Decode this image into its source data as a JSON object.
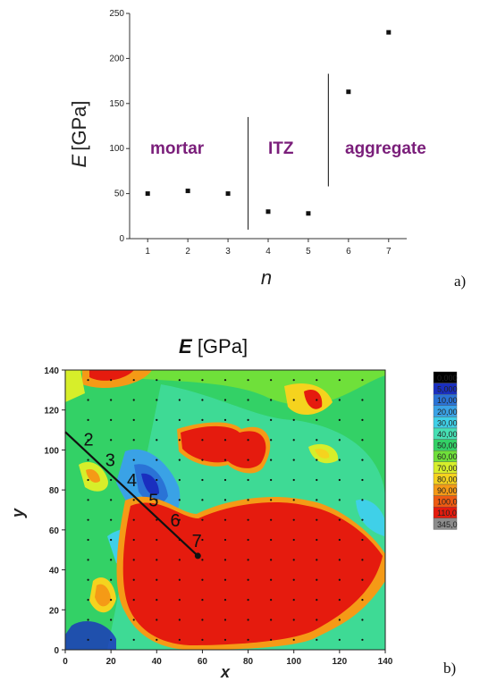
{
  "panel_a_label": "a)",
  "panel_b_label": "b)",
  "chart_data": [
    {
      "type": "scatter",
      "ylabel": "E [GPa]",
      "ylabel_symbol": "E",
      "ylabel_unit": "[GPa]",
      "xlabel": "n",
      "ylim": [
        0,
        250
      ],
      "y_ticks": [
        0,
        50,
        100,
        150,
        200,
        250
      ],
      "x_ticks": [
        1,
        2,
        3,
        4,
        5,
        6,
        7
      ],
      "points": [
        {
          "x": 1,
          "y": 50
        },
        {
          "x": 2,
          "y": 53
        },
        {
          "x": 3,
          "y": 50
        },
        {
          "x": 4,
          "y": 30
        },
        {
          "x": 5,
          "y": 28
        },
        {
          "x": 6,
          "y": 163
        },
        {
          "x": 7,
          "y": 229
        }
      ],
      "annotations": [
        "mortar",
        "ITZ",
        "aggregate"
      ],
      "dividers": [
        3.5,
        5.5
      ]
    },
    {
      "type": "heatmap",
      "title": "E [GPa]",
      "title_symbol": "E",
      "title_unit": "[GPa]",
      "xlabel": "x",
      "ylabel": "y",
      "xlim": [
        0,
        140
      ],
      "ylim": [
        0,
        140
      ],
      "x_ticks": [
        0,
        20,
        40,
        60,
        80,
        100,
        120,
        140
      ],
      "y_ticks": [
        0,
        20,
        40,
        60,
        80,
        100,
        120,
        140
      ],
      "legend_levels": [
        "0,000",
        "5,000",
        "10,00",
        "20,00",
        "30,00",
        "40,00",
        "50,00",
        "60,00",
        "70,00",
        "80,00",
        "90,00",
        "100,0",
        "110,0",
        "345,0"
      ],
      "legend_colors": [
        "#000000",
        "#1a2fbf",
        "#2a73d6",
        "#3aa2e6",
        "#3fd0e8",
        "#46e0b4",
        "#33d166",
        "#6fe03a",
        "#d7ee2a",
        "#f5d31e",
        "#f59a16",
        "#ee5b12",
        "#e51b0e",
        "#8c8c8c"
      ],
      "path_labels": [
        "2",
        "3",
        "4",
        "5",
        "6",
        "7"
      ],
      "path_start": {
        "x": 0,
        "y": 109
      },
      "path_end": {
        "x": 58,
        "y": 47
      }
    }
  ]
}
